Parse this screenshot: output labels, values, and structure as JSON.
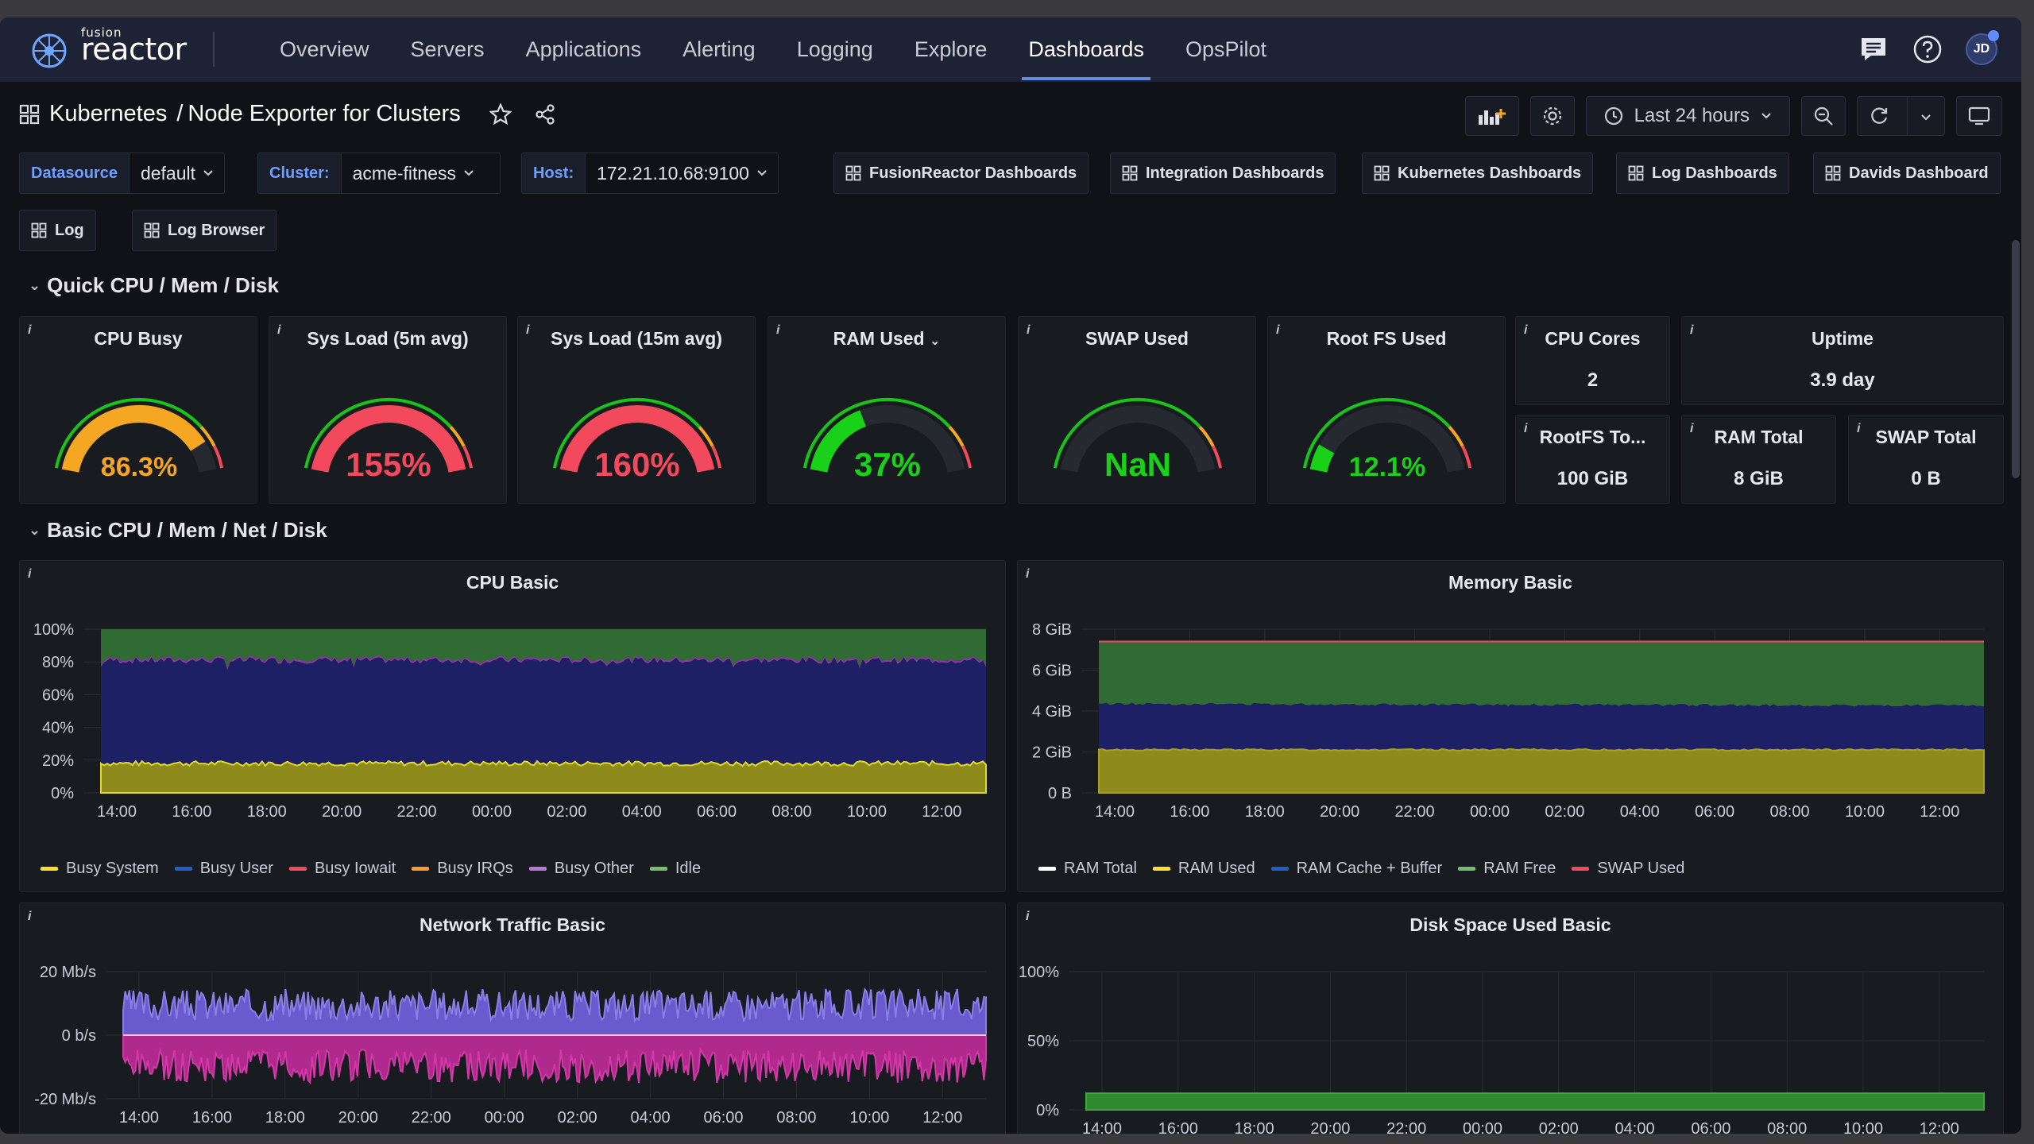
{
  "nav": {
    "logo_small": "fusion",
    "logo_big": "reactor",
    "items": [
      "Overview",
      "Servers",
      "Applications",
      "Alerting",
      "Logging",
      "Explore",
      "Dashboards",
      "OpsPilot"
    ],
    "avatar": "JD"
  },
  "breadcrumb": {
    "folder": "Kubernetes",
    "separator": "/",
    "title": "Node Exporter for Clusters"
  },
  "toolbar": {
    "time_range": "Last 24 hours"
  },
  "variables": [
    {
      "label": "Datasource",
      "value": "default"
    },
    {
      "label": "Cluster:",
      "value": "acme-fitness"
    },
    {
      "label": "Host:",
      "value": "172.21.10.68:9100"
    }
  ],
  "links": [
    "FusionReactor Dashboards",
    "Integration Dashboards",
    "Kubernetes Dashboards",
    "Log Dashboards",
    "Davids Dashboard",
    "Log",
    "Log Browser"
  ],
  "rows": {
    "quick": "Quick CPU / Mem / Disk",
    "basic": "Basic CPU / Mem / Net / Disk"
  },
  "gauges": [
    {
      "title": "CPU Busy",
      "value": "86.3%",
      "fraction": 0.863,
      "color": "#f5a623"
    },
    {
      "title": "Sys Load (5m avg)",
      "value": "155%",
      "fraction": 1.0,
      "color": "#f2495c"
    },
    {
      "title": "Sys Load (15m avg)",
      "value": "160%",
      "fraction": 1.0,
      "color": "#f2495c"
    },
    {
      "title": "RAM Used",
      "value": "37%",
      "fraction": 0.37,
      "color": "#19d119"
    },
    {
      "title": "SWAP Used",
      "value": "NaN",
      "fraction": 0,
      "color": "#19d119"
    },
    {
      "title": "Root FS Used",
      "value": "12.1%",
      "fraction": 0.121,
      "color": "#19d119"
    }
  ],
  "stats": {
    "cpu_cores": {
      "title": "CPU Cores",
      "value": "2"
    },
    "uptime": {
      "title": "Uptime",
      "value": "3.9 day"
    },
    "rootfs_total": {
      "title": "RootFS To...",
      "value": "100 GiB"
    },
    "ram_total": {
      "title": "RAM Total",
      "value": "8 GiB"
    },
    "swap_total": {
      "title": "SWAP Total",
      "value": "0 B"
    }
  },
  "info_glyph": "i",
  "colors": {
    "green": "#4a8f3a",
    "navy": "#1e2066",
    "olive": "#8f8a1c",
    "purple": "#8a3a9a",
    "red": "#f2495c",
    "blue": "#5f8cff",
    "pink": "#d438a8"
  },
  "chart_data": [
    {
      "type": "area",
      "title": "CPU Basic",
      "x_ticks": [
        "14:00",
        "16:00",
        "18:00",
        "20:00",
        "22:00",
        "00:00",
        "02:00",
        "04:00",
        "06:00",
        "08:00",
        "10:00",
        "12:00"
      ],
      "y_ticks": [
        "100%",
        "80%",
        "60%",
        "40%",
        "20%",
        "0%"
      ],
      "ylim": [
        0,
        100
      ],
      "series": [
        {
          "name": "Busy System",
          "color": "#fade2a",
          "approx_value": 18
        },
        {
          "name": "Busy User",
          "color": "#1f60c4",
          "approx_value": 66
        },
        {
          "name": "Busy Iowait",
          "color": "#f2495c",
          "approx_value": 0
        },
        {
          "name": "Busy IRQs",
          "color": "#ff9830",
          "approx_value": 0
        },
        {
          "name": "Busy Other",
          "color": "#b877d9",
          "approx_value": 1
        },
        {
          "name": "Idle",
          "color": "#73bf69",
          "approx_value": 15
        }
      ]
    },
    {
      "type": "area",
      "title": "Memory Basic",
      "x_ticks": [
        "14:00",
        "16:00",
        "18:00",
        "20:00",
        "22:00",
        "00:00",
        "02:00",
        "04:00",
        "06:00",
        "08:00",
        "10:00",
        "12:00"
      ],
      "y_ticks": [
        "8 GiB",
        "6 GiB",
        "4 GiB",
        "2 GiB",
        "0 B"
      ],
      "ylim": [
        0,
        8
      ],
      "series": [
        {
          "name": "RAM Total",
          "color": "#ffffff",
          "approx_value": 7.4
        },
        {
          "name": "RAM Used",
          "color": "#fade2a",
          "approx_value": 2.1
        },
        {
          "name": "RAM Cache + Buffer",
          "color": "#1f60c4",
          "approx_value": 2.2
        },
        {
          "name": "RAM Free",
          "color": "#73bf69",
          "approx_value": 3.1
        },
        {
          "name": "SWAP Used",
          "color": "#f2495c",
          "approx_value": 0
        }
      ]
    },
    {
      "type": "area",
      "title": "Network Traffic Basic",
      "x_ticks": [
        "14:00",
        "16:00",
        "18:00",
        "20:00",
        "22:00",
        "00:00",
        "02:00",
        "04:00",
        "06:00",
        "08:00",
        "10:00",
        "12:00"
      ],
      "y_ticks": [
        "20 Mb/s",
        "0 b/s",
        "-20 Mb/s"
      ],
      "ylim": [
        -20,
        20
      ]
    },
    {
      "type": "area",
      "title": "Disk Space Used Basic",
      "x_ticks": [
        "14:00",
        "16:00",
        "18:00",
        "20:00",
        "22:00",
        "00:00",
        "02:00",
        "04:00",
        "06:00",
        "08:00",
        "10:00",
        "12:00"
      ],
      "y_ticks": [
        "100%",
        "50%",
        "0%"
      ],
      "ylim": [
        0,
        100
      ],
      "series": [
        {
          "name": "",
          "color": "#3cab3c",
          "approx_value": 12
        }
      ]
    }
  ]
}
